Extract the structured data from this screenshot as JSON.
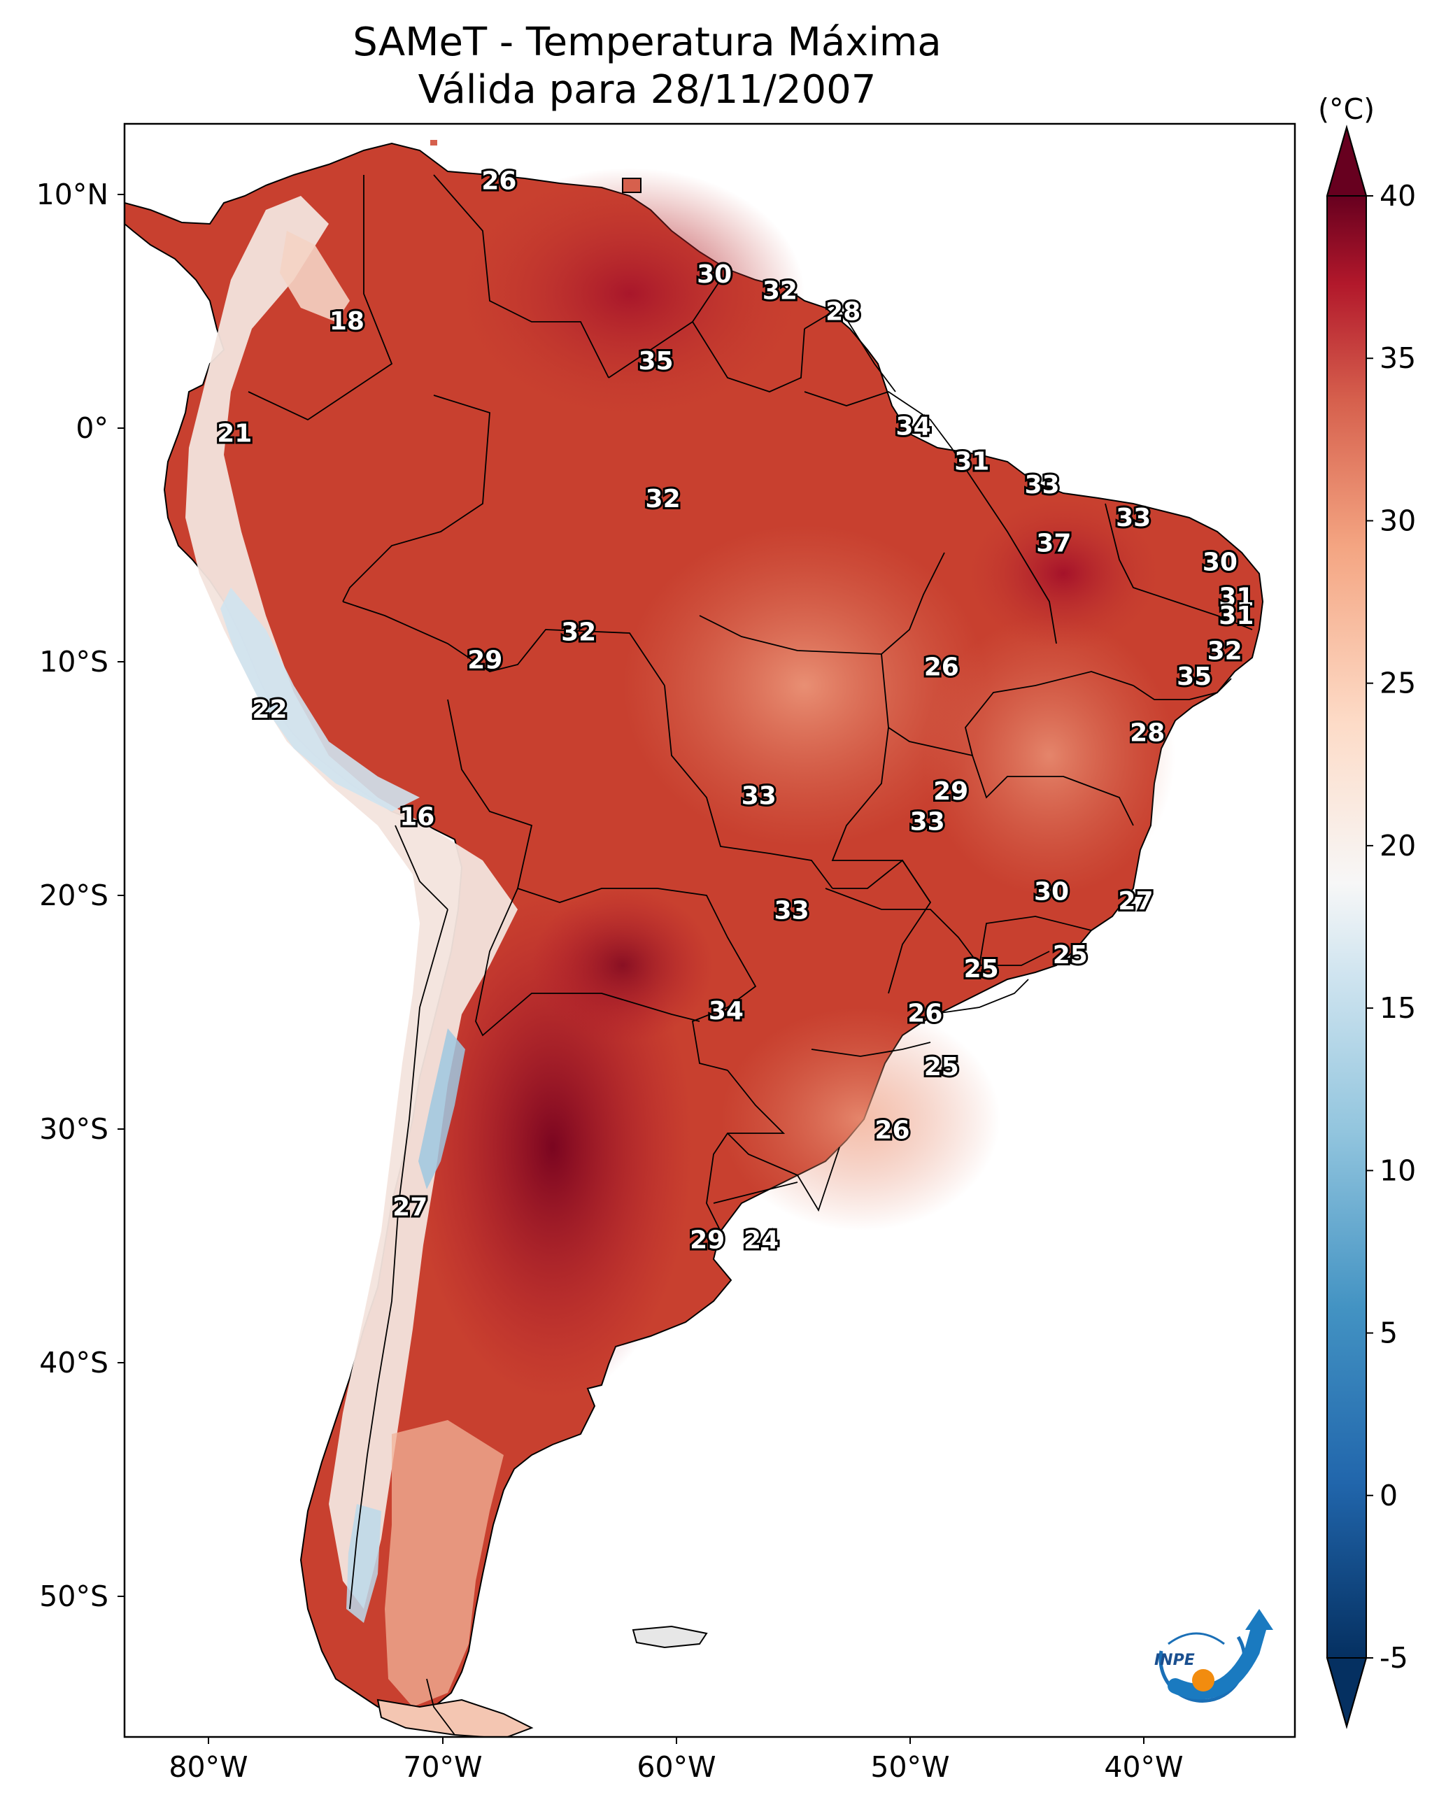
{
  "title_line1": "SAMeT - Temperatura Máxima",
  "title_line2": "Válida para 28/11/2007",
  "lat_ticks": [
    "10°N",
    "0°",
    "10°S",
    "20°S",
    "30°S",
    "40°S",
    "50°S"
  ],
  "lon_ticks": [
    "80°W",
    "70°W",
    "60°W",
    "50°W",
    "40°W"
  ],
  "colorbar": {
    "unit": "(°C)",
    "ticks": [
      "40",
      "35",
      "30",
      "25",
      "20",
      "15",
      "10",
      "5",
      "0",
      "-5"
    ],
    "range": [
      -5,
      40
    ],
    "colors": {
      "hot": "#67001f",
      "warm": "#d6604d",
      "neutral": "#f7f7f7",
      "cool": "#4393c3",
      "cold": "#053061"
    }
  },
  "chart_data": {
    "type": "heatmap",
    "title": "SAMeT - Temperatura Máxima — Válida para 28/11/2007",
    "variable": "Temperatura Máxima",
    "unit": "°C",
    "lon_range": [
      -83,
      -33
    ],
    "lat_range": [
      -56,
      13
    ],
    "contour_labels": [
      {
        "value": 26,
        "lon": -67,
        "lat": 10.5
      },
      {
        "value": 18,
        "lon": -73.5,
        "lat": 4.5
      },
      {
        "value": 30,
        "lon": -57.8,
        "lat": 6.5
      },
      {
        "value": 32,
        "lon": -55,
        "lat": 5.8
      },
      {
        "value": 28,
        "lon": -52.3,
        "lat": 4.9
      },
      {
        "value": 35,
        "lon": -60.3,
        "lat": 2.8
      },
      {
        "value": 21,
        "lon": -78.3,
        "lat": -0.3
      },
      {
        "value": 34,
        "lon": -49.3,
        "lat": 0
      },
      {
        "value": 31,
        "lon": -46.8,
        "lat": -1.5
      },
      {
        "value": 32,
        "lon": -60,
        "lat": -3.1
      },
      {
        "value": 33,
        "lon": -43.8,
        "lat": -2.5
      },
      {
        "value": 37,
        "lon": -43.3,
        "lat": -5
      },
      {
        "value": 33,
        "lon": -39.9,
        "lat": -3.9
      },
      {
        "value": 30,
        "lon": -36.2,
        "lat": -5.8
      },
      {
        "value": 31,
        "lon": -35.5,
        "lat": -7.3
      },
      {
        "value": 31,
        "lon": -35.5,
        "lat": -8.1
      },
      {
        "value": 32,
        "lon": -63.6,
        "lat": -8.8
      },
      {
        "value": 29,
        "lon": -67.6,
        "lat": -10
      },
      {
        "value": 26,
        "lon": -48.1,
        "lat": -10.3
      },
      {
        "value": 32,
        "lon": -36,
        "lat": -9.6
      },
      {
        "value": 35,
        "lon": -37.3,
        "lat": -10.7
      },
      {
        "value": 22,
        "lon": -76.8,
        "lat": -12.1
      },
      {
        "value": 28,
        "lon": -39.3,
        "lat": -13.1
      },
      {
        "value": 29,
        "lon": -47.7,
        "lat": -15.6
      },
      {
        "value": 33,
        "lon": -55.9,
        "lat": -15.8
      },
      {
        "value": 16,
        "lon": -70.5,
        "lat": -16.7
      },
      {
        "value": 33,
        "lon": -48.7,
        "lat": -16.9
      },
      {
        "value": 30,
        "lon": -43.4,
        "lat": -19.9
      },
      {
        "value": 27,
        "lon": -39.8,
        "lat": -20.3
      },
      {
        "value": 33,
        "lon": -54.5,
        "lat": -20.7
      },
      {
        "value": 25,
        "lon": -42.6,
        "lat": -22.6
      },
      {
        "value": 25,
        "lon": -46.4,
        "lat": -23.2
      },
      {
        "value": 34,
        "lon": -57.3,
        "lat": -25
      },
      {
        "value": 26,
        "lon": -48.8,
        "lat": -25.1
      },
      {
        "value": 25,
        "lon": -48.1,
        "lat": -27.4
      },
      {
        "value": 26,
        "lon": -50.2,
        "lat": -30.1
      },
      {
        "value": 27,
        "lon": -70.8,
        "lat": -33.4
      },
      {
        "value": 29,
        "lon": -58.1,
        "lat": -34.8
      },
      {
        "value": 24,
        "lon": -55.8,
        "lat": -34.8
      }
    ]
  }
}
